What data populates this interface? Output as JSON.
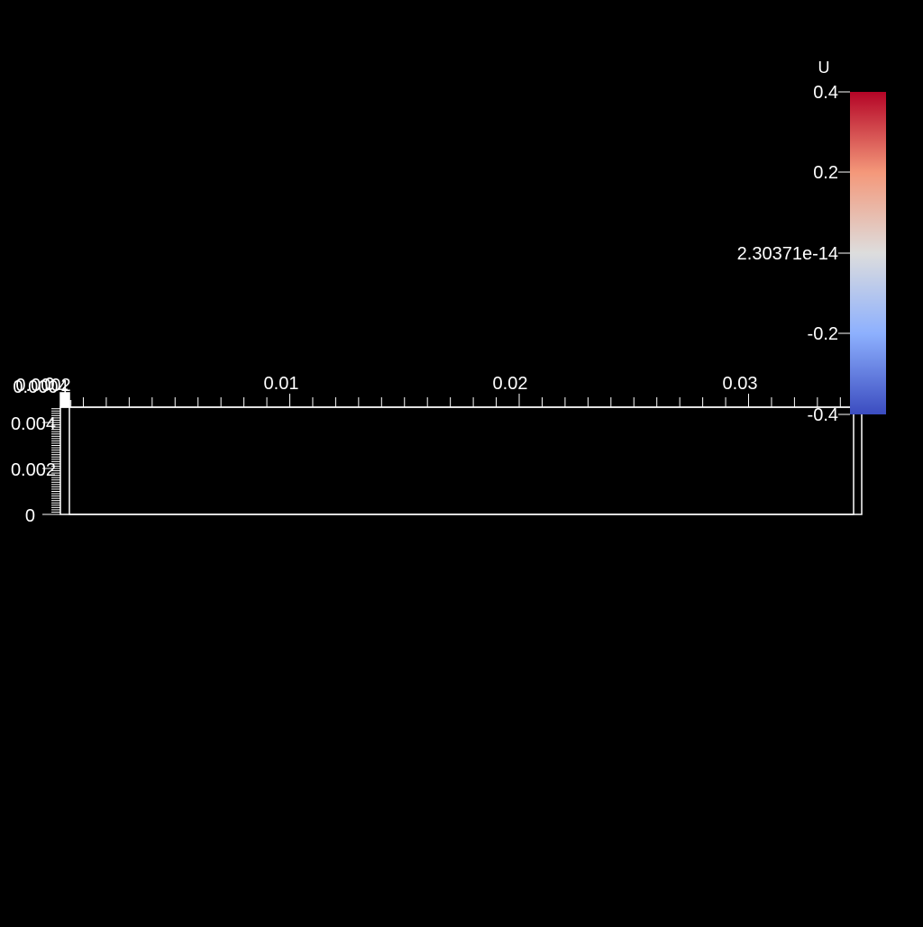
{
  "colors": {
    "background": "#000000",
    "foreground": "#ffffff",
    "colormap_top": "#b40426",
    "colormap_mid": "#dddddd",
    "colormap_bottom": "#3b4cc0"
  },
  "scalar_bar": {
    "title": "U",
    "range": [
      -0.4,
      0.4
    ],
    "labels": [
      "0.4",
      "0.2",
      "2.30371e-14",
      "-0.2",
      "-0.4"
    ],
    "colormap": "Cool to Warm"
  },
  "axes_grid": {
    "x_axis": {
      "labels": [
        "0.01",
        "0.02",
        "0.03"
      ],
      "overlapping_labels": [
        "0.0002",
        "0.0004",
        "0"
      ],
      "range": [
        0,
        0.0345
      ]
    },
    "y_axis": {
      "labels": [
        "0.004",
        "0.002",
        "0"
      ],
      "range": [
        0,
        0.0047
      ]
    }
  }
}
